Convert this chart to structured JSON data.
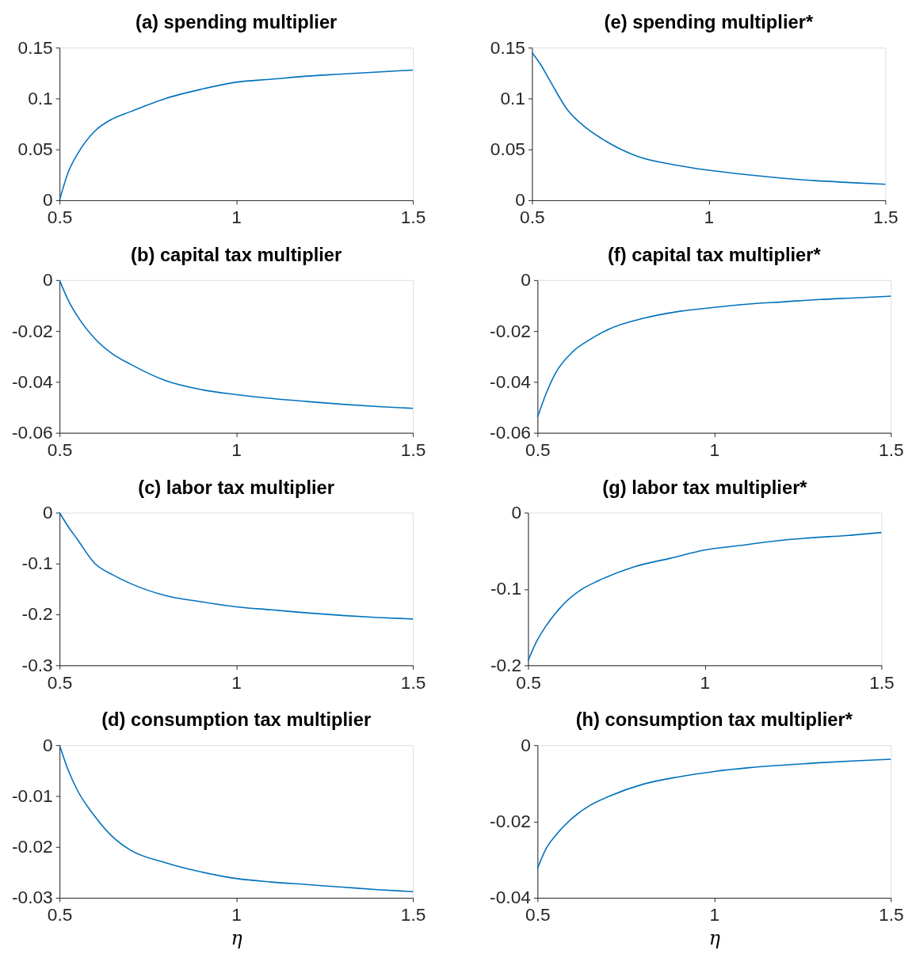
{
  "chart_data": [
    {
      "type": "line",
      "title": "(a) spending multiplier",
      "x": [
        0.5,
        0.525,
        0.55,
        0.6,
        0.65,
        0.7,
        0.8,
        0.9,
        1.0,
        1.1,
        1.2,
        1.3,
        1.4,
        1.5
      ],
      "series": [
        {
          "color": "#0072bd",
          "values": [
            0,
            0.028,
            0.045,
            0.068,
            0.08,
            0.087,
            0.1,
            0.109,
            0.116,
            0.119,
            0.122,
            0.124,
            0.126,
            0.128
          ]
        }
      ],
      "xlim": [
        0.5,
        1.5
      ],
      "xticks": [
        0.5,
        1,
        1.5
      ],
      "ylim": [
        0,
        0.15
      ],
      "yticks": [
        0,
        0.05,
        0.1,
        0.15
      ],
      "grid": false
    },
    {
      "type": "line",
      "title": "(e) spending multiplier*",
      "x": [
        0.5,
        0.525,
        0.55,
        0.6,
        0.65,
        0.7,
        0.8,
        0.9,
        1.0,
        1.1,
        1.2,
        1.3,
        1.4,
        1.5
      ],
      "series": [
        {
          "color": "#0072bd",
          "values": [
            0.145,
            0.133,
            0.118,
            0.089,
            0.072,
            0.06,
            0.043,
            0.035,
            0.0295,
            0.0254,
            0.022,
            0.0193,
            0.0174,
            0.0157
          ]
        }
      ],
      "xlim": [
        0.5,
        1.5
      ],
      "xticks": [
        0.5,
        1,
        1.5
      ],
      "ylim": [
        0,
        0.15
      ],
      "yticks": [
        0,
        0.05,
        0.1,
        0.15
      ],
      "grid": false
    },
    {
      "type": "line",
      "title": "(b) capital tax multiplier",
      "x": [
        0.5,
        0.525,
        0.55,
        0.6,
        0.65,
        0.7,
        0.8,
        0.9,
        1.0,
        1.1,
        1.2,
        1.3,
        1.4,
        1.5
      ],
      "series": [
        {
          "color": "#0072bd",
          "values": [
            0,
            -0.008,
            -0.014,
            -0.023,
            -0.029,
            -0.033,
            -0.0395,
            -0.043,
            -0.045,
            -0.0465,
            -0.0477,
            -0.0488,
            -0.0497,
            -0.0504
          ]
        }
      ],
      "xlim": [
        0.5,
        1.5
      ],
      "xticks": [
        0.5,
        1,
        1.5
      ],
      "ylim": [
        -0.06,
        0
      ],
      "yticks": [
        -0.06,
        -0.04,
        -0.02,
        0
      ],
      "grid": false
    },
    {
      "type": "line",
      "title": "(f) capital tax multiplier*",
      "x": [
        0.5,
        0.525,
        0.55,
        0.6,
        0.65,
        0.7,
        0.8,
        0.9,
        1.0,
        1.1,
        1.2,
        1.3,
        1.4,
        1.5
      ],
      "series": [
        {
          "color": "#0072bd",
          "values": [
            -0.0539,
            -0.0444,
            -0.0368,
            -0.0281,
            -0.0232,
            -0.0194,
            -0.015,
            -0.0123,
            -0.0107,
            -0.0094,
            -0.0085,
            -0.0076,
            -0.007,
            -0.0063
          ]
        }
      ],
      "xlim": [
        0.5,
        1.5
      ],
      "xticks": [
        0.5,
        1,
        1.5
      ],
      "ylim": [
        -0.06,
        0
      ],
      "yticks": [
        -0.06,
        -0.04,
        -0.02,
        0
      ],
      "grid": false
    },
    {
      "type": "line",
      "title": "(c) labor tax multiplier",
      "x": [
        0.5,
        0.525,
        0.55,
        0.6,
        0.65,
        0.7,
        0.8,
        0.9,
        1.0,
        1.1,
        1.2,
        1.3,
        1.4,
        1.5
      ],
      "series": [
        {
          "color": "#0072bd",
          "values": [
            0,
            -0.028,
            -0.052,
            -0.1,
            -0.122,
            -0.139,
            -0.163,
            -0.175,
            -0.185,
            -0.191,
            -0.197,
            -0.202,
            -0.206,
            -0.209
          ]
        }
      ],
      "xlim": [
        0.5,
        1.5
      ],
      "xticks": [
        0.5,
        1,
        1.5
      ],
      "ylim": [
        -0.3,
        0
      ],
      "yticks": [
        -0.3,
        -0.2,
        -0.1,
        0
      ],
      "grid": false
    },
    {
      "type": "line",
      "title": "(g) labor tax multiplier*",
      "x": [
        0.5,
        0.525,
        0.55,
        0.6,
        0.65,
        0.7,
        0.8,
        0.9,
        1.0,
        1.1,
        1.2,
        1.3,
        1.4,
        1.5
      ],
      "series": [
        {
          "color": "#0072bd",
          "values": [
            -0.194,
            -0.168,
            -0.149,
            -0.12,
            -0.101,
            -0.089,
            -0.071,
            -0.06,
            -0.049,
            -0.043,
            -0.037,
            -0.033,
            -0.03,
            -0.026
          ]
        }
      ],
      "xlim": [
        0.5,
        1.5
      ],
      "xticks": [
        0.5,
        1,
        1.5
      ],
      "ylim": [
        -0.2,
        0
      ],
      "yticks": [
        -0.2,
        -0.1,
        0
      ],
      "grid": false
    },
    {
      "type": "line",
      "title": "(d) consumption tax multiplier",
      "xlabel": "η",
      "x": [
        0.5,
        0.525,
        0.55,
        0.6,
        0.65,
        0.7,
        0.8,
        0.9,
        1.0,
        1.1,
        1.2,
        1.3,
        1.4,
        1.5
      ],
      "series": [
        {
          "color": "#0072bd",
          "values": [
            0,
            -0.005,
            -0.0088,
            -0.014,
            -0.018,
            -0.0206,
            -0.0231,
            -0.0249,
            -0.0262,
            -0.0269,
            -0.0274,
            -0.0279,
            -0.0284,
            -0.0288
          ]
        }
      ],
      "xlim": [
        0.5,
        1.5
      ],
      "xticks": [
        0.5,
        1,
        1.5
      ],
      "ylim": [
        -0.03,
        0
      ],
      "yticks": [
        -0.03,
        -0.02,
        -0.01,
        0
      ],
      "grid": false
    },
    {
      "type": "line",
      "title": "(h) consumption tax multiplier*",
      "xlabel": "η",
      "x": [
        0.5,
        0.525,
        0.55,
        0.6,
        0.65,
        0.7,
        0.8,
        0.9,
        1.0,
        1.1,
        1.2,
        1.3,
        1.4,
        1.5
      ],
      "series": [
        {
          "color": "#0072bd",
          "values": [
            -0.0323,
            -0.027,
            -0.0238,
            -0.019,
            -0.0157,
            -0.0135,
            -0.0102,
            -0.0083,
            -0.0069,
            -0.0059,
            -0.0052,
            -0.0046,
            -0.0041,
            -0.0037
          ]
        }
      ],
      "xlim": [
        0.5,
        1.5
      ],
      "xticks": [
        0.5,
        1,
        1.5
      ],
      "ylim": [
        -0.04,
        0
      ],
      "yticks": [
        -0.04,
        -0.02,
        0
      ],
      "grid": false
    }
  ]
}
